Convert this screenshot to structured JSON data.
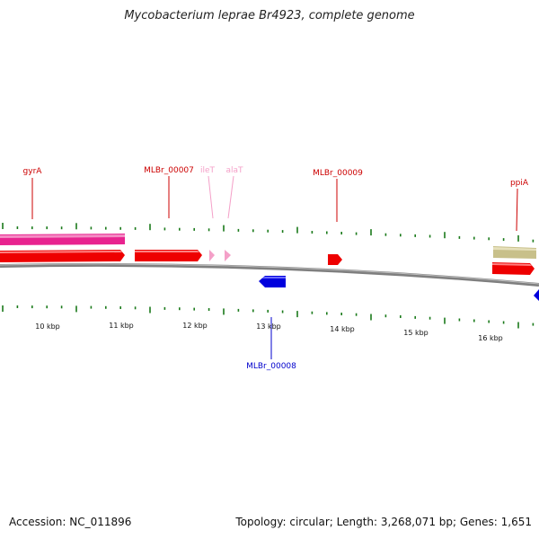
{
  "title": "Mycobacterium leprae Br4923, complete genome",
  "footer": {
    "accession": "Accession: NC_011896",
    "summary": "Topology: circular; Length: 3,268,071 bp; Genes: 1,651"
  },
  "map": {
    "scale_labels": [
      "10 kbp",
      "11 kbp",
      "12 kbp",
      "13 kbp",
      "14 kbp",
      "15 kbp",
      "16 kbp"
    ],
    "colors": {
      "cds_forward": "#ee0000",
      "cds_reverse": "#0000dd",
      "trna": "#f4a0c8",
      "pink_feature": "#e8238f",
      "olive_feature": "#c8c08a",
      "backbone": "#7f7f7f",
      "tick": "#1a7a1a"
    },
    "gene_labels": [
      {
        "name": "gyrA",
        "type": "cds_forward"
      },
      {
        "name": "MLBr_00007",
        "type": "cds_forward"
      },
      {
        "name": "ileT",
        "type": "trna"
      },
      {
        "name": "alaT",
        "type": "trna"
      },
      {
        "name": "MLBr_00009",
        "type": "cds_forward"
      },
      {
        "name": "ppiA",
        "type": "cds_forward"
      },
      {
        "name": "MLBr_00008",
        "type": "cds_reverse"
      }
    ]
  }
}
